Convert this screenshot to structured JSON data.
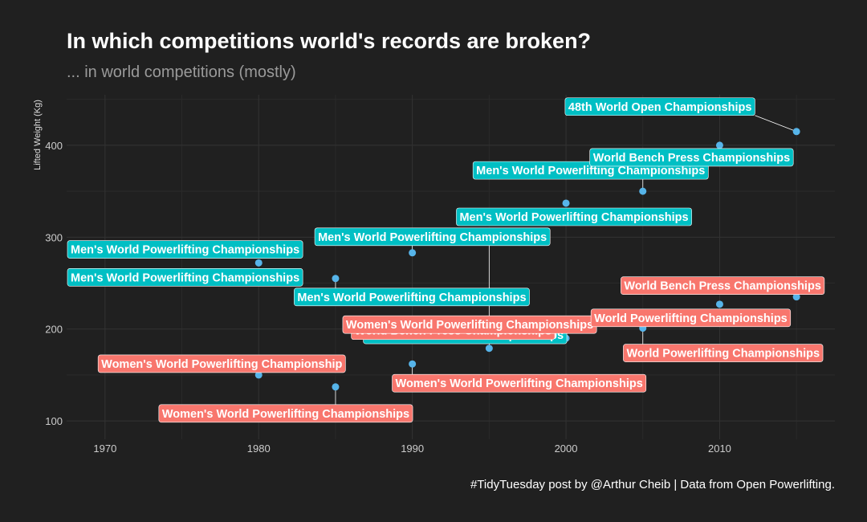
{
  "chart_data": {
    "type": "scatter",
    "title": "In which competitions world's records are broken?",
    "subtitle": "... in world competitions (mostly)",
    "ylabel": "Lifted Weight (Kg)",
    "xlabel": "",
    "caption": "#TidyTuesday post by @Arthur Cheib  |  Data from Open Powerlifting.",
    "xlim": [
      1967.5,
      2017.5
    ],
    "ylim": [
      80,
      455
    ],
    "x_ticks": [
      1970,
      1980,
      1990,
      2000,
      2010
    ],
    "y_ticks": [
      100,
      200,
      300,
      400
    ],
    "x_tick_labels": [
      "1970",
      "1980",
      "1990",
      "2000",
      "2010"
    ],
    "y_tick_labels": [
      "100",
      "200",
      "300",
      "400"
    ],
    "grid": true,
    "colors": {
      "background": "#202020",
      "grid_major": "#333333",
      "grid_minor": "#2a2a2a",
      "point": "#56B4E9",
      "men": "#00BFC4",
      "women": "#F8766D",
      "title": "#ffffff",
      "subtitle": "#9a9a9a",
      "axis_text": "#cccccc"
    },
    "series": [
      {
        "group": "men",
        "points": [
          {
            "x": 1980,
            "y": 272,
            "label": "Men's World Powerlifting Championships"
          },
          {
            "x": 1985,
            "y": 255,
            "label": "Men's World Powerlifting Championships"
          },
          {
            "x": 1990,
            "y": 283,
            "label": "Men's World Powerlifting Championships"
          },
          {
            "x": 1995,
            "y": 295,
            "label": "World Bench Press Championships"
          },
          {
            "x": 2000,
            "y": 337,
            "label": "Men's World Powerlifting Championships"
          },
          {
            "x": 2005,
            "y": 350,
            "label": "Men's World Powerlifting Championships"
          },
          {
            "x": 2010,
            "y": 400,
            "label": "World Bench Press Championships"
          },
          {
            "x": 2015,
            "y": 415,
            "label": "48th World Open Championships"
          },
          {
            "x": 1981,
            "y": 305,
            "label": "Men's World Powerlifting Championships"
          }
        ]
      },
      {
        "group": "women",
        "points": [
          {
            "x": 1980,
            "y": 150,
            "label": "Women's World Powerlifting Championship"
          },
          {
            "x": 1985,
            "y": 137,
            "label": "Women's World Powerlifting Championships"
          },
          {
            "x": 1990,
            "y": 162,
            "label": "Women's World Powerlifting Championships"
          },
          {
            "x": 1995,
            "y": 179,
            "label": "World Bench Press Championships"
          },
          {
            "x": 2000,
            "y": 190,
            "label": "Women's World Powerlifting Championships"
          },
          {
            "x": 2005,
            "y": 201,
            "label": "World Powerlifting Championships"
          },
          {
            "x": 2010,
            "y": 227,
            "label": "World Powerlifting Championships"
          },
          {
            "x": 2015,
            "y": 235,
            "label": "World Bench Press Championships"
          }
        ]
      }
    ]
  }
}
